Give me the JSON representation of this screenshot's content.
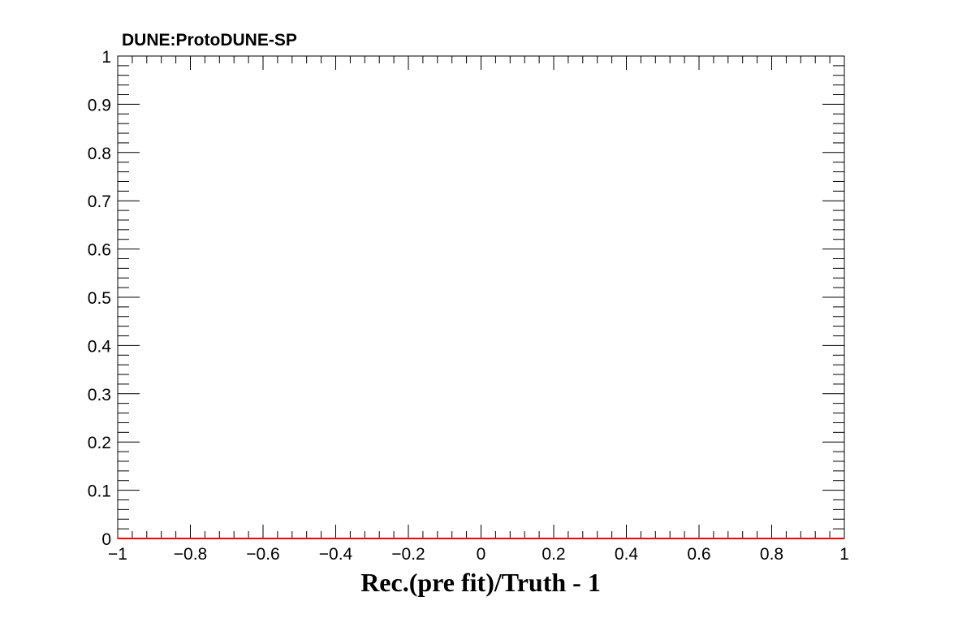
{
  "chart_data": {
    "type": "line",
    "title": "DUNE:ProtoDUNE-SP",
    "xlabel": "Rec.(pre fit)/Truth - 1",
    "ylabel": "",
    "xlim": [
      -1,
      1
    ],
    "ylim": [
      0,
      1
    ],
    "x_ticks": [
      -1,
      -0.8,
      -0.6,
      -0.4,
      -0.2,
      0,
      0.2,
      0.4,
      0.6,
      0.8,
      1
    ],
    "x_tick_labels": [
      "−1",
      "−0.8",
      "−0.6",
      "−0.4",
      "−0.2",
      "0",
      "0.2",
      "0.4",
      "0.6",
      "0.8",
      "1"
    ],
    "y_ticks": [
      0,
      0.1,
      0.2,
      0.3,
      0.4,
      0.5,
      0.6,
      0.7,
      0.8,
      0.9,
      1
    ],
    "y_tick_labels": [
      "0",
      "0.1",
      "0.2",
      "0.3",
      "0.4",
      "0.5",
      "0.6",
      "0.7",
      "0.8",
      "0.9",
      "1"
    ],
    "grid": false,
    "series": [
      {
        "color": "#ff0000",
        "x": [
          -1,
          1
        ],
        "y": [
          0,
          0
        ]
      }
    ]
  }
}
